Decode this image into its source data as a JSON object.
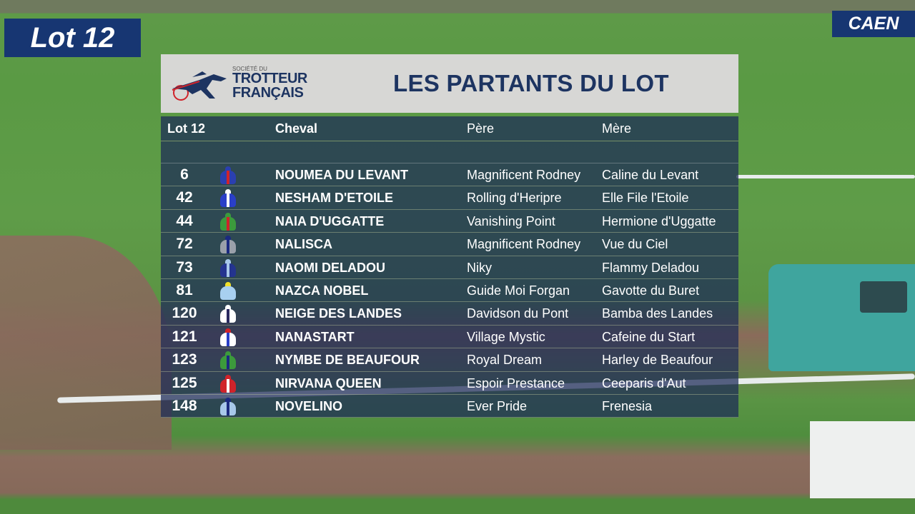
{
  "badges": {
    "lot": "Lot 12",
    "venue": "CAEN"
  },
  "header": {
    "logo_small": "SOCIÉTÉ DU",
    "logo_line1": "TROTTEUR",
    "logo_line2": "FRANÇAIS",
    "title": "LES PARTANTS DU LOT"
  },
  "table": {
    "columns": {
      "lot": "Lot 12",
      "horse": "Cheval",
      "sire": "Père",
      "dam": "Mère"
    },
    "rows": [
      {
        "num": "6",
        "horse": "NOUMEA DU LEVANT",
        "sire": "Magnificent Rodney",
        "dam": "Caline du Levant",
        "silk": {
          "cap": "#2b3fb0",
          "body": "#2b3fb0",
          "accent": "#d0232a"
        }
      },
      {
        "num": "42",
        "horse": "NESHAM D'ETOILE",
        "sire": "Rolling d'Heripre",
        "dam": "Elle File l'Etoile",
        "silk": {
          "cap": "#ffffff",
          "body": "#2a3fc8",
          "accent": "#ffffff"
        }
      },
      {
        "num": "44",
        "horse": "NAIA D'UGGATTE",
        "sire": "Vanishing Point",
        "dam": "Hermione d'Uggatte",
        "silk": {
          "cap": "#3c9a3c",
          "body": "#3c9a3c",
          "accent": "#d0232a"
        }
      },
      {
        "num": "72",
        "horse": "NALISCA",
        "sire": "Magnificent Rodney",
        "dam": "Vue du Ciel",
        "silk": {
          "cap": "#1b2a80",
          "body": "#9aa0aa",
          "accent": "#1b2a80"
        }
      },
      {
        "num": "73",
        "horse": "NAOMI DELADOU",
        "sire": "Niky",
        "dam": "Flammy Deladou",
        "silk": {
          "cap": "#a8c8ea",
          "body": "#24348f",
          "accent": "#a8c8ea"
        }
      },
      {
        "num": "81",
        "horse": "NAZCA NOBEL",
        "sire": "Guide Moi Forgan",
        "dam": "Gavotte du Buret",
        "silk": {
          "cap": "#f0e02a",
          "body": "#a8d0f0",
          "accent": "#a8d0f0"
        }
      },
      {
        "num": "120",
        "horse": "NEIGE DES LANDES",
        "sire": "Davidson du Pont",
        "dam": "Bamba des Landes",
        "silk": {
          "cap": "#ffffff",
          "body": "#ffffff",
          "accent": "#2a2a60"
        }
      },
      {
        "num": "121",
        "horse": "NANASTART",
        "sire": "Village Mystic",
        "dam": "Cafeine du Start",
        "silk": {
          "cap": "#d0232a",
          "body": "#ffffff",
          "accent": "#2a3fc8"
        }
      },
      {
        "num": "123",
        "horse": "NYMBE DE BEAUFOUR",
        "sire": "Royal Dream",
        "dam": "Harley de Beaufour",
        "silk": {
          "cap": "#3c9a3c",
          "body": "#3c9a3c",
          "accent": "#1b2a80"
        }
      },
      {
        "num": "125",
        "horse": "NIRVANA QUEEN",
        "sire": "Espoir Prestance",
        "dam": "Ceeparis d'Aut",
        "silk": {
          "cap": "#d0232a",
          "body": "#d0232a",
          "accent": "#ffffff"
        }
      },
      {
        "num": "148",
        "horse": "NOVELINO",
        "sire": "Ever Pride",
        "dam": "Frenesia",
        "silk": {
          "cap": "#1b2a80",
          "body": "#a8c8ea",
          "accent": "#1b2a80"
        }
      }
    ]
  },
  "colors": {
    "navy": "#1d3461",
    "badge": "#173672",
    "header_bg": "#d7d7d5",
    "logo_red": "#d0232a"
  }
}
